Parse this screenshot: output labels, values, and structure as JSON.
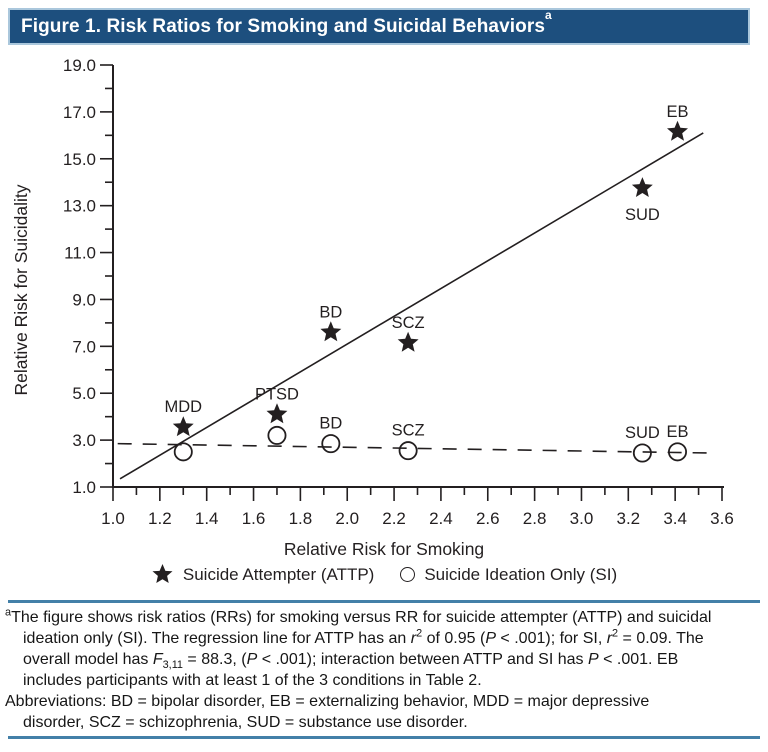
{
  "title": {
    "text": "Figure 1. Risk Ratios for Smoking and Suicidal Behaviors",
    "superscript": "a"
  },
  "colors": {
    "header_bg": "#1d4f7e",
    "header_border": "#aac7dc",
    "header_text": "#ffffff",
    "rule_blue": "#4380a8",
    "ink": "#231f20"
  },
  "chart_data": {
    "type": "scatter",
    "xlabel": "Relative Risk for Smoking",
    "ylabel": "Relative Risk for Suicidality",
    "xlim": [
      1.0,
      3.6
    ],
    "ylim": [
      1.0,
      19.0
    ],
    "xticks": [
      "1.0",
      "1.2",
      "1.4",
      "1.6",
      "1.8",
      "2.0",
      "2.2",
      "2.4",
      "2.6",
      "2.8",
      "3.0",
      "3.2",
      "3.4",
      "3.6"
    ],
    "yticks": [
      "1.0",
      "3.0",
      "5.0",
      "7.0",
      "9.0",
      "11.0",
      "13.0",
      "15.0",
      "17.0",
      "19.0"
    ],
    "xtick_minor_step": 0.1,
    "ytick_minor_step": 1.0,
    "grid": false,
    "legend_position": "bottom",
    "series": [
      {
        "name": "Suicide Attempter (ATTP)",
        "marker": "star",
        "points": [
          {
            "label": "MDD",
            "x": 1.3,
            "y": 3.55,
            "label_pos": "above"
          },
          {
            "label": "PTSD",
            "x": 1.7,
            "y": 4.1,
            "label_pos": "above"
          },
          {
            "label": "BD",
            "x": 1.93,
            "y": 7.6,
            "label_pos": "above"
          },
          {
            "label": "SCZ",
            "x": 2.26,
            "y": 7.15,
            "label_pos": "above"
          },
          {
            "label": "SUD",
            "x": 3.26,
            "y": 13.75,
            "label_pos": "below"
          },
          {
            "label": "EB",
            "x": 3.41,
            "y": 16.15,
            "label_pos": "above"
          }
        ]
      },
      {
        "name": "Suicide Ideation Only (SI)",
        "marker": "circle",
        "points": [
          {
            "label": "",
            "x": 1.3,
            "y": 2.5,
            "label_pos": "above"
          },
          {
            "label": "",
            "x": 1.7,
            "y": 3.2,
            "label_pos": "above"
          },
          {
            "label": "BD",
            "x": 1.93,
            "y": 2.85,
            "label_pos": "above"
          },
          {
            "label": "SCZ",
            "x": 2.26,
            "y": 2.55,
            "label_pos": "above"
          },
          {
            "label": "SUD",
            "x": 3.26,
            "y": 2.45,
            "label_pos": "above"
          },
          {
            "label": "EB",
            "x": 3.41,
            "y": 2.5,
            "label_pos": "above"
          }
        ]
      }
    ],
    "lines": [
      {
        "name": "ATTP regression line",
        "style": "solid",
        "x1": 1.03,
        "y1": 1.35,
        "x2": 3.52,
        "y2": 16.1
      },
      {
        "name": "SI regression line",
        "style": "dashed",
        "x1": 1.02,
        "y1": 2.85,
        "x2": 3.54,
        "y2": 2.45
      }
    ]
  },
  "legend": {
    "items": [
      {
        "marker": "star",
        "label": "Suicide Attempter (ATTP)"
      },
      {
        "marker": "circle",
        "label": "Suicide Ideation Only (SI)"
      }
    ]
  },
  "footnote": {
    "lines": [
      {
        "indent": false,
        "segments": [
          {
            "sup": "a"
          },
          {
            "t": "The figure shows risk ratios (RRs) for smoking versus RR for suicide attempter (ATTP) and suicidal"
          }
        ]
      },
      {
        "indent": true,
        "segments": [
          {
            "t": "ideation only (SI). The regression line for ATTP has an "
          },
          {
            "t": "r",
            "i": true
          },
          {
            "sup": "2"
          },
          {
            "t": " of 0.95 ("
          },
          {
            "t": "P",
            "i": true
          },
          {
            "t": " < .001); for SI, "
          },
          {
            "t": "r",
            "i": true
          },
          {
            "sup": "2"
          },
          {
            "t": " = 0.09. The"
          }
        ]
      },
      {
        "indent": true,
        "segments": [
          {
            "t": "overall model has "
          },
          {
            "t": "F",
            "i": true
          },
          {
            "sub": "3,11"
          },
          {
            "t": " = 88.3, ("
          },
          {
            "t": "P",
            "i": true
          },
          {
            "t": " < .001); interaction between ATTP and SI has "
          },
          {
            "t": "P",
            "i": true
          },
          {
            "t": " < .001. EB"
          }
        ]
      },
      {
        "indent": true,
        "segments": [
          {
            "t": "includes participants with at least 1 of the 3 conditions in Table 2."
          }
        ]
      },
      {
        "indent": false,
        "segments": [
          {
            "t": "Abbreviations: BD = bipolar disorder, EB = externalizing behavior, MDD = major depressive"
          }
        ]
      },
      {
        "indent": true,
        "segments": [
          {
            "t": "disorder, SCZ = schizophrenia, SUD = substance use disorder."
          }
        ]
      }
    ]
  }
}
